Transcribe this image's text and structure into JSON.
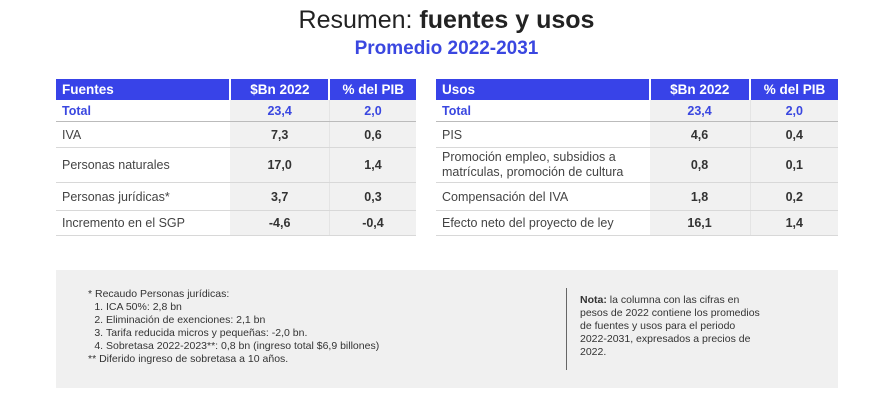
{
  "title": {
    "regular": "Resumen: ",
    "bold": "fuentes y usos"
  },
  "subtitle": "Promedio 2022-2031",
  "fuentes": {
    "headers": [
      "Fuentes",
      "$Bn 2022",
      "% del PIB"
    ],
    "total": {
      "label": "Total",
      "bn": "23,4",
      "pib": "2,0"
    },
    "rows": [
      {
        "label": "IVA",
        "bn": "7,3",
        "pib": "0,6"
      },
      {
        "label": "Personas naturales",
        "bn": "17,0",
        "pib": "1,4"
      },
      {
        "label": "Personas jurídicas*",
        "bn": "3,7",
        "pib": "0,3"
      },
      {
        "label": "Incremento en el SGP",
        "bn": "-4,6",
        "pib": "-0,4"
      }
    ]
  },
  "usos": {
    "headers": [
      "Usos",
      "$Bn 2022",
      "% del PIB"
    ],
    "total": {
      "label": "Total",
      "bn": "23,4",
      "pib": "2,0"
    },
    "rows": [
      {
        "label": "PIS",
        "bn": "4,6",
        "pib": "0,4"
      },
      {
        "label": "Promoción empleo, subsidios a",
        "label2": "matrículas, promoción de cultura",
        "bn": "0,8",
        "pib": "0,1"
      },
      {
        "label": "Compensación del IVA",
        "bn": "1,8",
        "pib": "0,2"
      },
      {
        "label": "Efecto neto del proyecto de ley",
        "bn": "16,1",
        "pib": "1,4"
      }
    ]
  },
  "footnotes": {
    "intro": "* Recaudo Personas jurídicas:",
    "items": [
      "ICA 50%: 2,8 bn",
      "Eliminación de exenciones: 2,1 bn",
      "Tarifa reducida micros y pequeñas: -2,0 bn.",
      "Sobretasa 2022-2023**: 0,8 bn (ingreso total $6,9 billones)"
    ],
    "outro": "** Diferido ingreso de sobretasa a 10 años."
  },
  "note": {
    "bold": "Nota:",
    "text": " la columna con las cifras en pesos de 2022 contiene los promedios de fuentes y usos para el periodo 2022-2031, expresados a precios de 2022."
  }
}
